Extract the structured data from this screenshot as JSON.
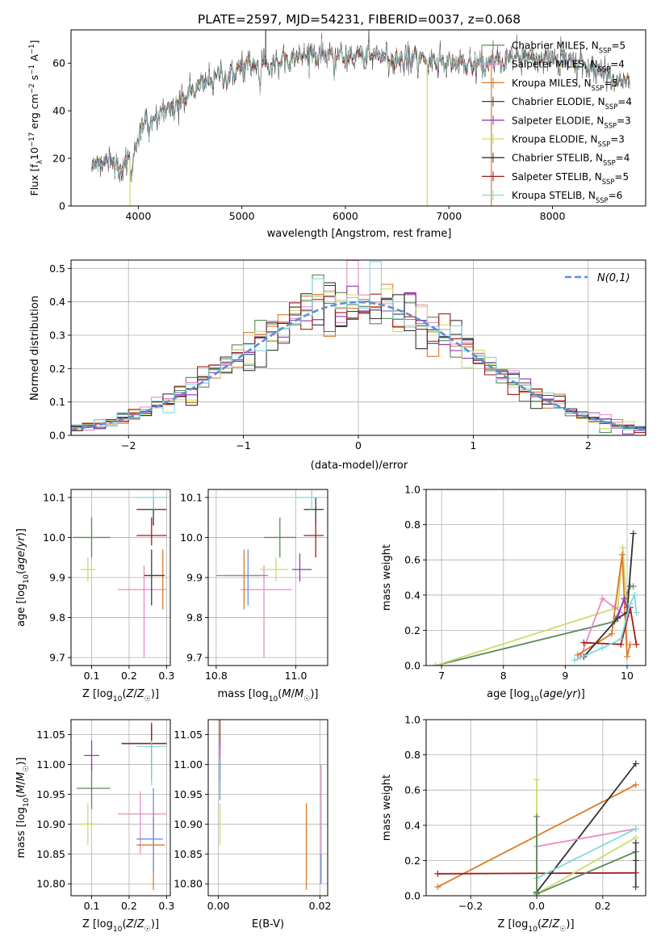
{
  "figure": {
    "title": "PLATE=2597, MJD=54231, FIBERID=0037, z=0.068"
  },
  "colors": {
    "Chabrier MILES": "#5a8a5a",
    "Salpeter MILES": "#e98bc6",
    "Kroupa MILES": "#dd7a26",
    "Chabrier ELODIE": "#3f3f3f",
    "Salpeter ELODIE": "#8e3bb6",
    "Kroupa ELODIE": "#ccdb6a",
    "Chabrier STELIB": "#333333",
    "Salpeter STELIB": "#a51a1a",
    "Kroupa STELIB": "#80d9dd",
    "gaussian": "#5b8fd6",
    "extra_blue": "#6a8fdc"
  },
  "chart_data": [
    {
      "id": "spectrum",
      "type": "line",
      "title": "PLATE=2597, MJD=54231, FIBERID=0037, z=0.068",
      "xlabel": "wavelength [Angstrom, rest frame]",
      "ylabel": "Flux [f_λ10^-17 erg cm^-2 s^-1 A^-1]",
      "xlim": [
        3350,
        8900
      ],
      "ylim": [
        0,
        74
      ],
      "xticks": [
        4000,
        5000,
        6000,
        7000,
        8000
      ],
      "yticks": [
        0,
        20,
        40,
        60
      ],
      "grid": false,
      "legend_position": "top-right",
      "legend": [
        {
          "name": "Chabrier MILES",
          "nssp": "5"
        },
        {
          "name": "Salpeter MILES",
          "nssp": "4"
        },
        {
          "name": "Kroupa MILES",
          "nssp": "5"
        },
        {
          "name": "Chabrier ELODIE",
          "nssp": "4"
        },
        {
          "name": "Salpeter ELODIE",
          "nssp": "3"
        },
        {
          "name": "Kroupa ELODIE",
          "nssp": "3"
        },
        {
          "name": "Chabrier STELIB",
          "nssp": "4"
        },
        {
          "name": "Salpeter STELIB",
          "nssp": "5"
        },
        {
          "name": "Kroupa STELIB",
          "nssp": "6"
        }
      ],
      "continuum_shape": [
        [
          3550,
          17
        ],
        [
          3650,
          19
        ],
        [
          3750,
          19
        ],
        [
          3850,
          16
        ],
        [
          3950,
          22
        ],
        [
          4050,
          35
        ],
        [
          4200,
          38
        ],
        [
          4400,
          44
        ],
        [
          4600,
          51
        ],
        [
          4800,
          55
        ],
        [
          5000,
          58
        ],
        [
          5200,
          59
        ],
        [
          5400,
          62
        ],
        [
          5600,
          63
        ],
        [
          5800,
          64
        ],
        [
          6000,
          63
        ],
        [
          6300,
          63
        ],
        [
          6600,
          62
        ],
        [
          6900,
          61
        ],
        [
          7100,
          60
        ],
        [
          7300,
          59
        ],
        [
          7500,
          61
        ],
        [
          7700,
          63
        ],
        [
          7900,
          62
        ],
        [
          8100,
          61
        ],
        [
          8300,
          59
        ],
        [
          8500,
          55
        ],
        [
          8750,
          51
        ]
      ],
      "artifacts": [
        {
          "series": "Kroupa ELODIE",
          "x": 3920,
          "y": 0
        },
        {
          "series": "Kroupa ELODIE",
          "x": 6790,
          "y": 0
        },
        {
          "series": "Kroupa MILES",
          "x": 7410,
          "y": 0
        },
        {
          "series": "Chabrier ELODIE",
          "x": 5230,
          "y": 75
        }
      ]
    },
    {
      "id": "residuals",
      "type": "histogram",
      "xlabel": "(data-model)/error",
      "ylabel": "Normed distribution",
      "xlim": [
        -2.5,
        2.5
      ],
      "ylim": [
        0,
        0.525
      ],
      "xticks": [
        -2,
        -1,
        0,
        1,
        2
      ],
      "yticks": [
        0,
        0.1,
        0.2,
        0.3,
        0.4,
        0.5
      ],
      "grid": true,
      "legend_position": "top-right",
      "gaussian_label": "N(0,1)",
      "bin_width": 0.1
    },
    {
      "id": "age_vs_Z",
      "type": "errorbar",
      "xlabel": "Z [log10(Z/Z☉)]",
      "ylabel": "age  [log10(age/yr)]",
      "xlim": [
        0.045,
        0.31
      ],
      "ylim": [
        9.68,
        10.12
      ],
      "xticks": [
        0.1,
        0.2,
        0.3
      ],
      "yticks": [
        9.7,
        9.8,
        9.9,
        10.0,
        10.1
      ],
      "grid": true,
      "points": [
        {
          "series": "Chabrier MILES",
          "x": 0.1,
          "xlo": 0.05,
          "xhi": 0.15,
          "y": 10.0,
          "ylo": 9.95,
          "yhi": 10.05
        },
        {
          "series": "Salpeter MILES",
          "x": 0.24,
          "xlo": 0.17,
          "xhi": 0.3,
          "y": 9.87,
          "ylo": 9.7,
          "yhi": 9.93
        },
        {
          "series": "Kroupa MILES",
          "x": 0.29,
          "xlo": 0.24,
          "xhi": 0.295,
          "y": 9.905,
          "ylo": 9.82,
          "yhi": 9.97
        },
        {
          "series": "Chabrier ELODIE",
          "x": 0.26,
          "xlo": 0.24,
          "xhi": 0.295,
          "y": 9.905,
          "ylo": 9.83,
          "yhi": 9.97
        },
        {
          "series": "Kroupa ELODIE",
          "x": 0.09,
          "xlo": 0.07,
          "xhi": 0.11,
          "y": 9.92,
          "ylo": 9.89,
          "yhi": 9.95
        },
        {
          "series": "Chabrier STELIB",
          "x": 0.265,
          "xlo": 0.22,
          "xhi": 0.3,
          "y": 10.07,
          "ylo": 10.03,
          "yhi": 10.1
        },
        {
          "series": "Salpeter STELIB",
          "x": 0.26,
          "xlo": 0.22,
          "xhi": 0.3,
          "y": 10.005,
          "ylo": 9.98,
          "yhi": 10.05
        },
        {
          "series": "Kroupa STELIB",
          "x": 0.265,
          "xlo": 0.22,
          "xhi": 0.3,
          "y": 10.1,
          "ylo": 10.07,
          "yhi": 10.12
        }
      ]
    },
    {
      "id": "age_vs_mass",
      "type": "errorbar",
      "xlabel": "mass [log10(M/M☉)]",
      "ylabel": "",
      "xlim": [
        10.78,
        11.08
      ],
      "ylim": [
        9.68,
        10.12
      ],
      "xticks": [
        10.8,
        11.0
      ],
      "yticks": [
        9.7,
        9.8,
        9.9,
        10.0,
        10.1
      ],
      "grid": true,
      "points": [
        {
          "series": "Chabrier MILES",
          "x": 10.96,
          "xlo": 10.92,
          "xhi": 11.0,
          "y": 10.0,
          "ylo": 9.95,
          "yhi": 10.05
        },
        {
          "series": "Salpeter MILES",
          "x": 10.92,
          "xlo": 10.86,
          "xhi": 10.99,
          "y": 9.87,
          "ylo": 9.7,
          "yhi": 9.93
        },
        {
          "series": "Kroupa MILES",
          "x": 10.87,
          "xlo": 10.8,
          "xhi": 10.91,
          "y": 9.905,
          "ylo": 9.82,
          "yhi": 9.97
        },
        {
          "series": "extra_blue",
          "x": 10.88,
          "xlo": 10.82,
          "xhi": 10.93,
          "y": 9.905,
          "ylo": 9.83,
          "yhi": 9.97
        },
        {
          "series": "Salpeter ELODIE",
          "x": 11.01,
          "xlo": 10.99,
          "xhi": 11.04,
          "y": 9.92,
          "ylo": 9.89,
          "yhi": 9.96
        },
        {
          "series": "Kroupa ELODIE",
          "x": 10.95,
          "xlo": 10.91,
          "xhi": 10.98,
          "y": 9.92,
          "ylo": 9.89,
          "yhi": 9.95
        },
        {
          "series": "Chabrier STELIB",
          "x": 11.05,
          "xlo": 11.02,
          "xhi": 11.07,
          "y": 10.07,
          "ylo": 10.03,
          "yhi": 10.1
        },
        {
          "series": "Salpeter STELIB",
          "x": 11.05,
          "xlo": 11.02,
          "xhi": 11.07,
          "y": 10.005,
          "ylo": 9.95,
          "yhi": 10.05
        },
        {
          "series": "Kroupa STELIB",
          "x": 11.04,
          "xlo": 11.0,
          "xhi": 11.06,
          "y": 10.1,
          "ylo": 10.07,
          "yhi": 10.12
        }
      ]
    },
    {
      "id": "weight_vs_age",
      "type": "line",
      "xlabel": "age  [log10(age/yr)]",
      "ylabel": "mass weight",
      "xlim": [
        6.75,
        10.3
      ],
      "ylim": [
        0,
        1.0
      ],
      "xticks": [
        7,
        8,
        9,
        10
      ],
      "yticks": [
        0,
        0.2,
        0.4,
        0.6,
        0.8,
        1.0
      ],
      "grid": true
    },
    {
      "id": "mass_vs_Z",
      "type": "errorbar",
      "xlabel": "Z [log10(Z/Z☉)]",
      "ylabel": "mass [log10(M/M☉)]",
      "xlim": [
        0.045,
        0.31
      ],
      "ylim": [
        10.78,
        11.075
      ],
      "xticks": [
        0.1,
        0.2,
        0.3
      ],
      "yticks": [
        10.8,
        10.85,
        10.9,
        10.95,
        11.0,
        11.05
      ],
      "grid": true,
      "points": [
        {
          "series": "Chabrier MILES",
          "x": 0.1,
          "xlo": 0.06,
          "xhi": 0.15,
          "y": 10.96,
          "ylo": 10.925,
          "yhi": 11.0
        },
        {
          "series": "Salpeter MILES",
          "x": 0.23,
          "xlo": 0.17,
          "xhi": 0.3,
          "y": 10.917,
          "ylo": 10.85,
          "yhi": 10.955
        },
        {
          "series": "Kroupa MILES",
          "x": 0.265,
          "xlo": 0.22,
          "xhi": 0.295,
          "y": 10.865,
          "ylo": 10.79,
          "yhi": 10.91
        },
        {
          "series": "extra_blue",
          "x": 0.265,
          "xlo": 0.22,
          "xhi": 0.29,
          "y": 10.875,
          "ylo": 10.82,
          "yhi": 10.96
        },
        {
          "series": "Salpeter ELODIE",
          "x": 0.1,
          "xlo": 0.08,
          "xhi": 0.12,
          "y": 11.015,
          "ylo": 10.99,
          "yhi": 11.04
        },
        {
          "series": "Kroupa ELODIE",
          "x": 0.09,
          "xlo": 0.065,
          "xhi": 0.115,
          "y": 10.9,
          "ylo": 10.865,
          "yhi": 10.935
        },
        {
          "series": "Chabrier STELIB",
          "x": 0.26,
          "xlo": 0.18,
          "xhi": 0.3,
          "y": 11.035,
          "ylo": 10.975,
          "yhi": 11.065
        },
        {
          "series": "Salpeter STELIB",
          "x": 0.26,
          "xlo": 0.18,
          "xhi": 0.3,
          "y": 11.035,
          "ylo": 11.0,
          "yhi": 11.07
        },
        {
          "series": "Kroupa STELIB",
          "x": 0.26,
          "xlo": 0.22,
          "xhi": 0.3,
          "y": 11.03,
          "ylo": 10.965,
          "yhi": 11.04
        }
      ]
    },
    {
      "id": "mass_vs_EBV",
      "type": "errorbar",
      "xlabel": "E(B-V)",
      "ylabel": "",
      "xlim": [
        -0.002,
        0.0215
      ],
      "ylim": [
        10.78,
        11.075
      ],
      "xticks": [
        0.0,
        0.02
      ],
      "yticks": [
        10.8,
        10.85,
        10.9,
        10.95,
        11.0,
        11.05
      ],
      "grid": true,
      "points": [
        {
          "series": "Salpeter STELIB",
          "x": 0.0003,
          "y": 11.05,
          "ylo": 11.03,
          "yhi": 11.075
        },
        {
          "series": "Salpeter ELODIE",
          "x": 0.0003,
          "y": 11.0,
          "ylo": 10.97,
          "yhi": 11.04
        },
        {
          "series": "extra_blue",
          "x": 0.0003,
          "y": 10.98,
          "ylo": 10.94,
          "yhi": 11.01
        },
        {
          "series": "Kroupa ELODIE",
          "x": 0.0003,
          "y": 10.9,
          "ylo": 10.865,
          "yhi": 10.935
        },
        {
          "series": "Kroupa MILES",
          "x": 0.0173,
          "y": 10.865,
          "ylo": 10.79,
          "yhi": 10.935
        },
        {
          "series": "Salpeter MILES",
          "x": 0.0202,
          "y": 10.9,
          "ylo": 10.8,
          "yhi": 11.0
        },
        {
          "series": "extra_blue",
          "x": 0.0202,
          "y": 10.82,
          "ylo": 10.8,
          "yhi": 10.85
        }
      ]
    },
    {
      "id": "weight_vs_Z",
      "type": "line",
      "xlabel": "Z [log10(Z/Z☉)]",
      "ylabel": "mass weight",
      "xlim": [
        -0.335,
        0.33
      ],
      "ylim": [
        0,
        1.0
      ],
      "xticks": [
        -0.2,
        0.0,
        0.2
      ],
      "yticks": [
        0,
        0.2,
        0.4,
        0.6,
        0.8,
        1.0
      ],
      "grid": true
    }
  ]
}
